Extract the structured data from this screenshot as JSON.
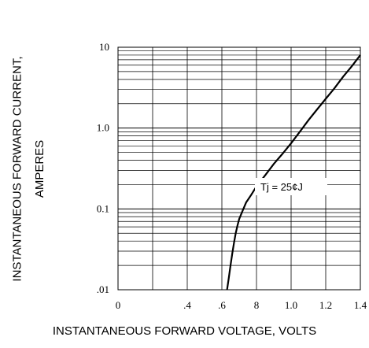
{
  "chart_data": {
    "type": "line",
    "title": "",
    "xlabel": "INSTANTANEOUS FORWARD VOLTAGE, VOLTS",
    "ylabel_lines": [
      "INSTANTANEOUS FORWARD CURRENT,",
      "AMPERES"
    ],
    "x_scale": "linear",
    "y_scale": "log",
    "xlim": [
      0,
      1.4
    ],
    "ylim": [
      0.01,
      10
    ],
    "x_ticks": [
      0,
      0.2,
      0.4,
      0.6,
      0.8,
      1.0,
      1.2,
      1.4
    ],
    "x_tick_labels": [
      "0",
      ".4",
      ".6",
      "8",
      "1.0",
      "1.2",
      "1.4"
    ],
    "x_tick_label_positions": [
      0,
      0.4,
      0.6,
      0.8,
      1.0,
      1.2,
      1.4
    ],
    "y_tick_values": [
      10,
      1.0,
      0.1,
      0.01
    ],
    "y_tick_labels": [
      "10",
      "1.0",
      "0.1",
      ".01"
    ],
    "grid": true,
    "annotation": "Tj = 25¢J",
    "series": [
      {
        "x": [
          0.63,
          0.64,
          0.65,
          0.66,
          0.67,
          0.68,
          0.69,
          0.7,
          0.72,
          0.74,
          0.77,
          0.8,
          0.85,
          0.9,
          0.95,
          1.0,
          1.05,
          1.1,
          1.15,
          1.2,
          1.25,
          1.3,
          1.35,
          1.4
        ],
        "y": [
          0.01,
          0.014,
          0.02,
          0.028,
          0.038,
          0.05,
          0.062,
          0.075,
          0.095,
          0.12,
          0.15,
          0.19,
          0.26,
          0.36,
          0.48,
          0.65,
          0.9,
          1.25,
          1.7,
          2.3,
          3.1,
          4.3,
          5.8,
          8.0
        ]
      }
    ]
  }
}
